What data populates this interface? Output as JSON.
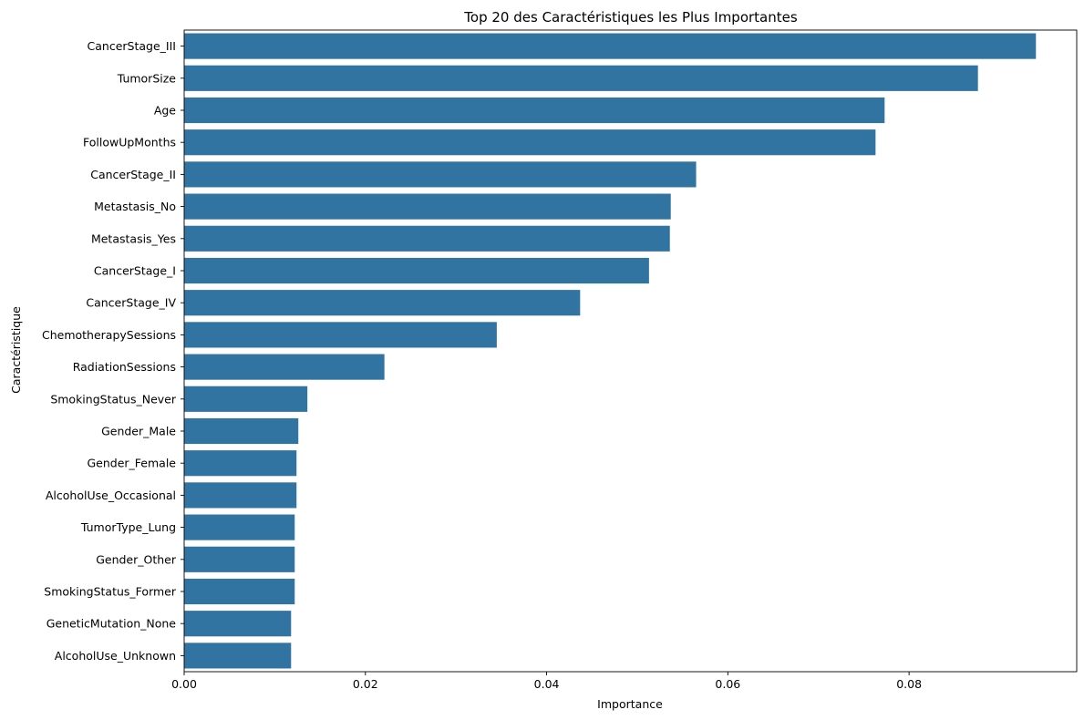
{
  "chart_data": {
    "type": "bar",
    "orientation": "horizontal",
    "title": "Top 20 des Caractéristiques les Plus Importantes",
    "xlabel": "Importance",
    "ylabel": "Caractéristique",
    "xlim": [
      0,
      0.0985
    ],
    "xticks": [
      "0.00",
      "0.02",
      "0.04",
      "0.06",
      "0.08"
    ],
    "xtick_values": [
      0,
      0.02,
      0.04,
      0.06,
      0.08
    ],
    "grid": false,
    "bar_color": "#3274a1",
    "categories": [
      "CancerStage_III",
      "TumorSize",
      "Age",
      "FollowUpMonths",
      "CancerStage_II",
      "Metastasis_No",
      "Metastasis_Yes",
      "CancerStage_I",
      "CancerStage_IV",
      "ChemotherapySessions",
      "RadiationSessions",
      "SmokingStatus_Never",
      "Gender_Male",
      "Gender_Female",
      "AlcoholUse_Occasional",
      "TumorType_Lung",
      "Gender_Other",
      "SmokingStatus_Former",
      "GeneticMutation_None",
      "AlcoholUse_Unknown"
    ],
    "values": [
      0.094,
      0.0876,
      0.0773,
      0.0763,
      0.0565,
      0.0537,
      0.0536,
      0.0513,
      0.0437,
      0.0345,
      0.0221,
      0.0136,
      0.0126,
      0.0124,
      0.0124,
      0.0122,
      0.0122,
      0.0122,
      0.0118,
      0.0118
    ]
  }
}
